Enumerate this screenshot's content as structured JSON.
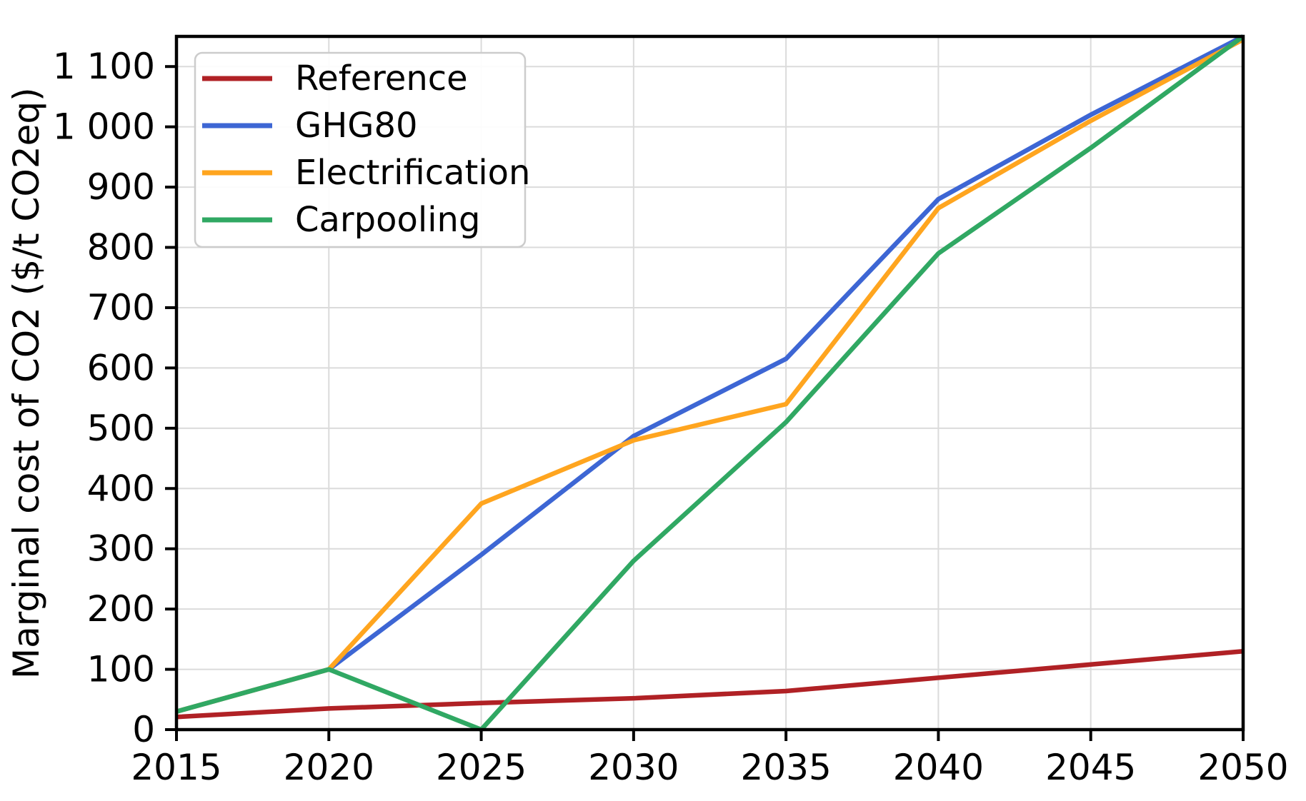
{
  "page": {
    "background": "#ffffff"
  },
  "chart_data": {
    "type": "line",
    "title": "",
    "xlabel": "",
    "ylabel": "Marginal cost of CO2 ($/t CO2eq)",
    "x": [
      2015,
      2020,
      2025,
      2030,
      2035,
      2040,
      2045,
      2050
    ],
    "xtick_labels": [
      "2015",
      "2020",
      "2025",
      "2030",
      "2035",
      "2040",
      "2045",
      "2050"
    ],
    "xlim": [
      2015,
      2050
    ],
    "ylim": [
      0,
      1150
    ],
    "yticks": [
      0,
      100,
      200,
      300,
      400,
      500,
      600,
      700,
      800,
      900,
      1000,
      1100
    ],
    "ytick_labels": [
      "0",
      "100",
      "200",
      "300",
      "400",
      "500",
      "600",
      "700",
      "800",
      "900",
      "1 000",
      "1 100"
    ],
    "grid": true,
    "grid_color": "#dbdbdb",
    "axis_color": "#000000",
    "units": "$/t CO2eq",
    "legend": {
      "position": "upper-left",
      "background": "#ffffff",
      "border_color": "#cccccc",
      "labels": [
        "Reference",
        "GHG80",
        "Electrification",
        "Carpooling"
      ]
    },
    "series": [
      {
        "name": "Reference",
        "color": "#b02125",
        "values": [
          21,
          35,
          44,
          52,
          64,
          86,
          108,
          130
        ]
      },
      {
        "name": "GHG80",
        "color": "#3d66d4",
        "values": [
          30,
          100,
          290,
          487,
          615,
          880,
          1020,
          1150
        ]
      },
      {
        "name": "Electrification",
        "color": "#ffa51f",
        "values": [
          30,
          100,
          375,
          480,
          540,
          865,
          1010,
          1145
        ]
      },
      {
        "name": "Carpooling",
        "color": "#30a863",
        "values": [
          30,
          100,
          0,
          280,
          510,
          790,
          965,
          1150
        ]
      }
    ]
  }
}
